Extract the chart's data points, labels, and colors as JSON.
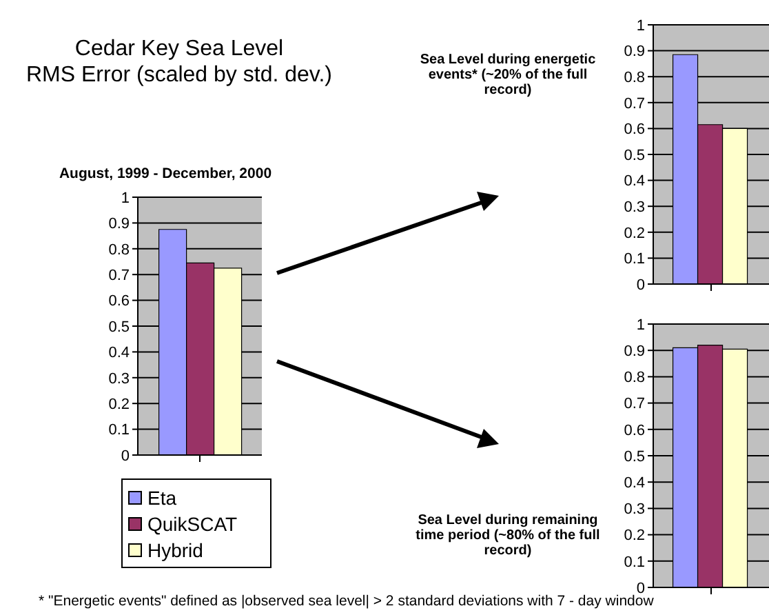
{
  "chart_data": [
    {
      "type": "bar",
      "title": "August, 1999 - December, 2000",
      "categories": [
        null
      ],
      "series": [
        {
          "name": "Eta",
          "color": "#9999ff",
          "values": [
            0.875
          ]
        },
        {
          "name": "QuikSCAT",
          "color": "#993366",
          "values": [
            0.745
          ]
        },
        {
          "name": "Hybrid",
          "color": "#ffffcc",
          "values": [
            0.725
          ]
        }
      ],
      "ylim": [
        0,
        1
      ],
      "yticks": [
        0,
        0.1,
        0.2,
        0.3,
        0.4,
        0.5,
        0.6,
        0.7,
        0.8,
        0.9,
        1
      ],
      "grid": "y",
      "legend": "bottom",
      "annotations": [
        "Cedar Key Sea Level",
        "RMS Error (scaled by std. dev.)",
        "* \"Energetic events\" defined as |observed sea level| > 2 standard deviations with 7 - day window"
      ]
    },
    {
      "type": "bar",
      "title": "Sea Level during energetic events* (~20% of the full record)",
      "categories": [
        null
      ],
      "series": [
        {
          "color": "#9999ff",
          "values": [
            0.885
          ]
        },
        {
          "color": "#993366",
          "values": [
            0.615
          ]
        },
        {
          "color": "#ffffcc",
          "values": [
            0.6
          ]
        }
      ],
      "ylim": [
        0,
        1
      ],
      "yticks": [
        0,
        0.1,
        0.2,
        0.3,
        0.4,
        0.5,
        0.6,
        0.7,
        0.8,
        0.9,
        1
      ],
      "grid": "y"
    },
    {
      "type": "bar",
      "title": "Sea Level during remaining time period (~80% of the full record)",
      "categories": [
        null
      ],
      "series": [
        {
          "color": "#9999ff",
          "values": [
            0.91
          ]
        },
        {
          "color": "#993366",
          "values": [
            0.92
          ]
        },
        {
          "color": "#ffffcc",
          "values": [
            0.905
          ]
        }
      ],
      "ylim": [
        0,
        1
      ],
      "yticks": [
        0,
        0.1,
        0.2,
        0.3,
        0.4,
        0.5,
        0.6,
        0.7,
        0.8,
        0.9,
        1
      ],
      "grid": "y"
    }
  ]
}
